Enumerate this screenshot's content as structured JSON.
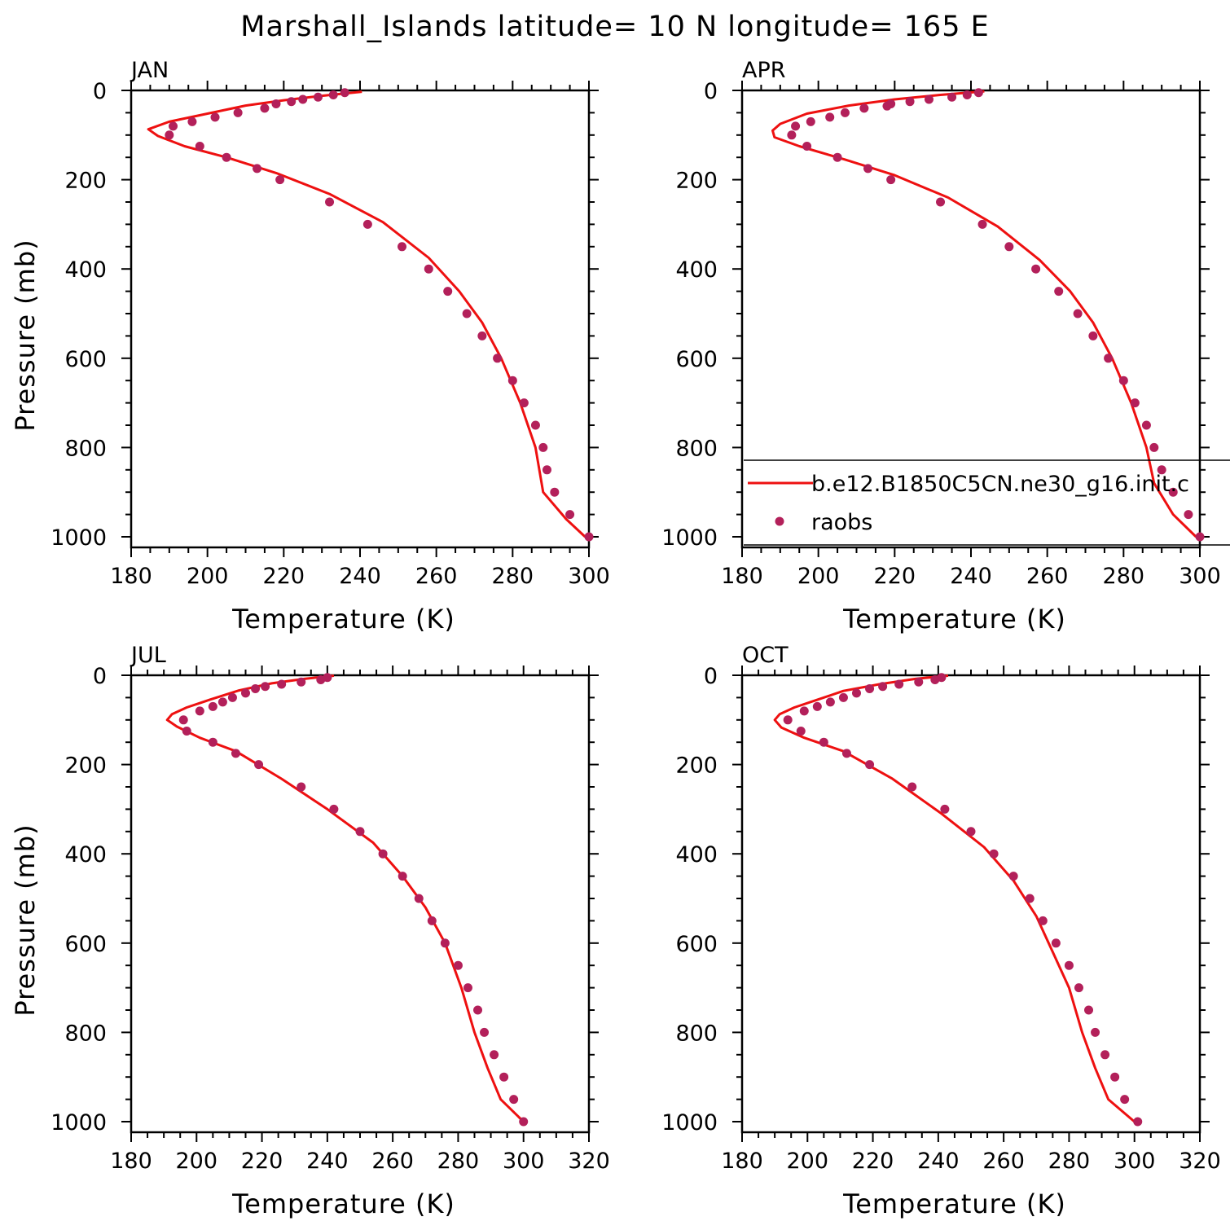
{
  "figure": {
    "title": "Marshall_Islands  latitude= 10 N longitude= 165 E"
  },
  "colors": {
    "model_line": "#ee1010",
    "raobs_marker": "#b3205a",
    "axes": "#000000",
    "background": "#ffffff"
  },
  "legend": {
    "entries": [
      {
        "label": "b.e12.B1850C5CN.ne30_g16.init.c",
        "marker": "line"
      },
      {
        "label": "raobs",
        "marker": "dot"
      }
    ],
    "panel": "APR",
    "placement": "lower-right"
  },
  "chart_data": [
    {
      "type": "scatter",
      "panel": "JAN",
      "xlabel": "Temperature (K)",
      "ylabel": "Pressure (mb)",
      "xlim": [
        180,
        300
      ],
      "ylim": [
        1000,
        0
      ],
      "xticks": [
        180,
        200,
        220,
        240,
        260,
        280,
        300
      ],
      "yticks": [
        0,
        200,
        400,
        600,
        800,
        1000
      ],
      "series": [
        {
          "name": "b.e12.B1850C5CN.ne30_g16.init.c",
          "style": "line",
          "points": [
            [
              240.5,
              3
            ],
            [
              230,
              12
            ],
            [
              220,
              22
            ],
            [
              210,
              34
            ],
            [
              200,
              52
            ],
            [
              190,
              70
            ],
            [
              184.5,
              87
            ],
            [
              187,
              102
            ],
            [
              194,
              125
            ],
            [
              205,
              150
            ],
            [
              218,
              185
            ],
            [
              232,
              232
            ],
            [
              246,
              295
            ],
            [
              258,
              375
            ],
            [
              266,
              450
            ],
            [
              272,
              520
            ],
            [
              277,
              600
            ],
            [
              282,
              700
            ],
            [
              286,
              800
            ],
            [
              288,
              900
            ],
            [
              294,
              960
            ],
            [
              299,
              1000
            ]
          ]
        },
        {
          "name": "raobs",
          "style": "markers",
          "points": [
            [
              236,
              5
            ],
            [
              233,
              10
            ],
            [
              229,
              15
            ],
            [
              225,
              20
            ],
            [
              222,
              25
            ],
            [
              218,
              30
            ],
            [
              215,
              40
            ],
            [
              208,
              50
            ],
            [
              202,
              60
            ],
            [
              196,
              70
            ],
            [
              191,
              80
            ],
            [
              190,
              100
            ],
            [
              198,
              125
            ],
            [
              205,
              150
            ],
            [
              213,
              175
            ],
            [
              219,
              200
            ],
            [
              232,
              250
            ],
            [
              242,
              300
            ],
            [
              251,
              350
            ],
            [
              258,
              400
            ],
            [
              263,
              450
            ],
            [
              268,
              500
            ],
            [
              272,
              550
            ],
            [
              276,
              600
            ],
            [
              280,
              650
            ],
            [
              283,
              700
            ],
            [
              286,
              750
            ],
            [
              288,
              800
            ],
            [
              289,
              850
            ],
            [
              291,
              900
            ],
            [
              295,
              950
            ],
            [
              300,
              1000
            ]
          ]
        }
      ]
    },
    {
      "type": "scatter",
      "panel": "APR",
      "xlabel": "Temperature (K)",
      "ylabel": "",
      "xlim": [
        180,
        300
      ],
      "ylim": [
        1000,
        0
      ],
      "xticks": [
        180,
        200,
        220,
        240,
        260,
        280,
        300
      ],
      "yticks": [
        0,
        200,
        400,
        600,
        800,
        1000
      ],
      "series": [
        {
          "name": "b.e12.B1850C5CN.ne30_g16.init.c",
          "style": "line",
          "points": [
            [
              243.5,
              2
            ],
            [
              232,
              10
            ],
            [
              220,
              20
            ],
            [
              208,
              34
            ],
            [
              197,
              52
            ],
            [
              190,
              75
            ],
            [
              188,
              90
            ],
            [
              188.5,
              105
            ],
            [
              195,
              125
            ],
            [
              207,
              155
            ],
            [
              220,
              190
            ],
            [
              234,
              240
            ],
            [
              247,
              305
            ],
            [
              258,
              380
            ],
            [
              266,
              450
            ],
            [
              272,
              520
            ],
            [
              277,
              600
            ],
            [
              282,
              700
            ],
            [
              286,
              800
            ],
            [
              288,
              880
            ],
            [
              293,
              950
            ],
            [
              299,
              1000
            ]
          ]
        },
        {
          "name": "raobs",
          "style": "markers",
          "points": [
            [
              242,
              5
            ],
            [
              239,
              10
            ],
            [
              235,
              15
            ],
            [
              229,
              20
            ],
            [
              224,
              25
            ],
            [
              219,
              30
            ],
            [
              218,
              35
            ],
            [
              212,
              40
            ],
            [
              207,
              50
            ],
            [
              203,
              60
            ],
            [
              198,
              70
            ],
            [
              194,
              80
            ],
            [
              193,
              100
            ],
            [
              197,
              125
            ],
            [
              205,
              150
            ],
            [
              213,
              175
            ],
            [
              219,
              200
            ],
            [
              232,
              250
            ],
            [
              243,
              300
            ],
            [
              250,
              350
            ],
            [
              257,
              400
            ],
            [
              263,
              450
            ],
            [
              268,
              500
            ],
            [
              272,
              550
            ],
            [
              276,
              600
            ],
            [
              280,
              650
            ],
            [
              283,
              700
            ],
            [
              286,
              750
            ],
            [
              288,
              800
            ],
            [
              290,
              850
            ],
            [
              293,
              900
            ],
            [
              297,
              950
            ],
            [
              300,
              1000
            ]
          ]
        }
      ]
    },
    {
      "type": "scatter",
      "panel": "JUL",
      "xlabel": "Temperature (K)",
      "ylabel": "Pressure (mb)",
      "xlim": [
        180,
        320
      ],
      "ylim": [
        1000,
        0
      ],
      "xticks": [
        180,
        200,
        220,
        240,
        260,
        280,
        300,
        320
      ],
      "yticks": [
        0,
        200,
        400,
        600,
        800,
        1000
      ],
      "series": [
        {
          "name": "b.e12.B1850C5CN.ne30_g16.init.c",
          "style": "line",
          "points": [
            [
              242,
              1
            ],
            [
              233,
              8
            ],
            [
              223,
              18
            ],
            [
              213,
              34
            ],
            [
              204,
              55
            ],
            [
              197,
              72
            ],
            [
              192.5,
              87
            ],
            [
              191,
              100
            ],
            [
              194,
              115
            ],
            [
              201,
              140
            ],
            [
              212,
              170
            ],
            [
              226,
              232
            ],
            [
              240,
              300
            ],
            [
              254,
              375
            ],
            [
              263,
              450
            ],
            [
              270,
              520
            ],
            [
              276,
              600
            ],
            [
              281,
              700
            ],
            [
              285,
              800
            ],
            [
              289,
              880
            ],
            [
              293,
              950
            ],
            [
              300,
              1000
            ]
          ]
        },
        {
          "name": "raobs",
          "style": "markers",
          "points": [
            [
              240,
              5
            ],
            [
              238,
              10
            ],
            [
              232,
              15
            ],
            [
              226,
              20
            ],
            [
              221,
              25
            ],
            [
              218,
              30
            ],
            [
              215,
              40
            ],
            [
              211,
              50
            ],
            [
              208,
              60
            ],
            [
              205,
              70
            ],
            [
              201,
              80
            ],
            [
              196,
              100
            ],
            [
              197,
              125
            ],
            [
              205,
              150
            ],
            [
              212,
              175
            ],
            [
              219,
              200
            ],
            [
              232,
              250
            ],
            [
              242,
              300
            ],
            [
              250,
              350
            ],
            [
              257,
              400
            ],
            [
              263,
              450
            ],
            [
              268,
              500
            ],
            [
              272,
              550
            ],
            [
              276,
              600
            ],
            [
              280,
              650
            ],
            [
              283,
              700
            ],
            [
              286,
              750
            ],
            [
              288,
              800
            ],
            [
              291,
              850
            ],
            [
              294,
              900
            ],
            [
              297,
              950
            ],
            [
              300,
              1000
            ]
          ]
        }
      ]
    },
    {
      "type": "scatter",
      "panel": "OCT",
      "xlabel": "Temperature (K)",
      "ylabel": "",
      "xlim": [
        180,
        320
      ],
      "ylim": [
        1000,
        0
      ],
      "xticks": [
        180,
        200,
        220,
        240,
        260,
        280,
        300,
        320
      ],
      "yticks": [
        0,
        200,
        400,
        600,
        800,
        1000
      ],
      "series": [
        {
          "name": "b.e12.B1850C5CN.ne30_g16.init.c",
          "style": "line",
          "points": [
            [
              243,
              1
            ],
            [
              233,
              8
            ],
            [
              222,
              20
            ],
            [
              211,
              35
            ],
            [
              203,
              55
            ],
            [
              196,
              72
            ],
            [
              191.5,
              87
            ],
            [
              190,
              100
            ],
            [
              192,
              117
            ],
            [
              199,
              140
            ],
            [
              211,
              170
            ],
            [
              226,
              232
            ],
            [
              241,
              310
            ],
            [
              254,
              385
            ],
            [
              263,
              460
            ],
            [
              270,
              540
            ],
            [
              275,
              620
            ],
            [
              280,
              700
            ],
            [
              284,
              800
            ],
            [
              288,
              880
            ],
            [
              292,
              950
            ],
            [
              300,
              1000
            ]
          ]
        },
        {
          "name": "raobs",
          "style": "markers",
          "points": [
            [
              241,
              5
            ],
            [
              239,
              10
            ],
            [
              234,
              15
            ],
            [
              228,
              20
            ],
            [
              223,
              25
            ],
            [
              219,
              30
            ],
            [
              215,
              40
            ],
            [
              211,
              50
            ],
            [
              207,
              60
            ],
            [
              203,
              70
            ],
            [
              199,
              80
            ],
            [
              194,
              100
            ],
            [
              198,
              125
            ],
            [
              205,
              150
            ],
            [
              212,
              175
            ],
            [
              219,
              200
            ],
            [
              232,
              250
            ],
            [
              242,
              300
            ],
            [
              250,
              350
            ],
            [
              257,
              400
            ],
            [
              263,
              450
            ],
            [
              268,
              500
            ],
            [
              272,
              550
            ],
            [
              276,
              600
            ],
            [
              280,
              650
            ],
            [
              283,
              700
            ],
            [
              286,
              750
            ],
            [
              288,
              800
            ],
            [
              291,
              850
            ],
            [
              294,
              900
            ],
            [
              297,
              950
            ],
            [
              301,
              1000
            ]
          ]
        }
      ]
    }
  ]
}
